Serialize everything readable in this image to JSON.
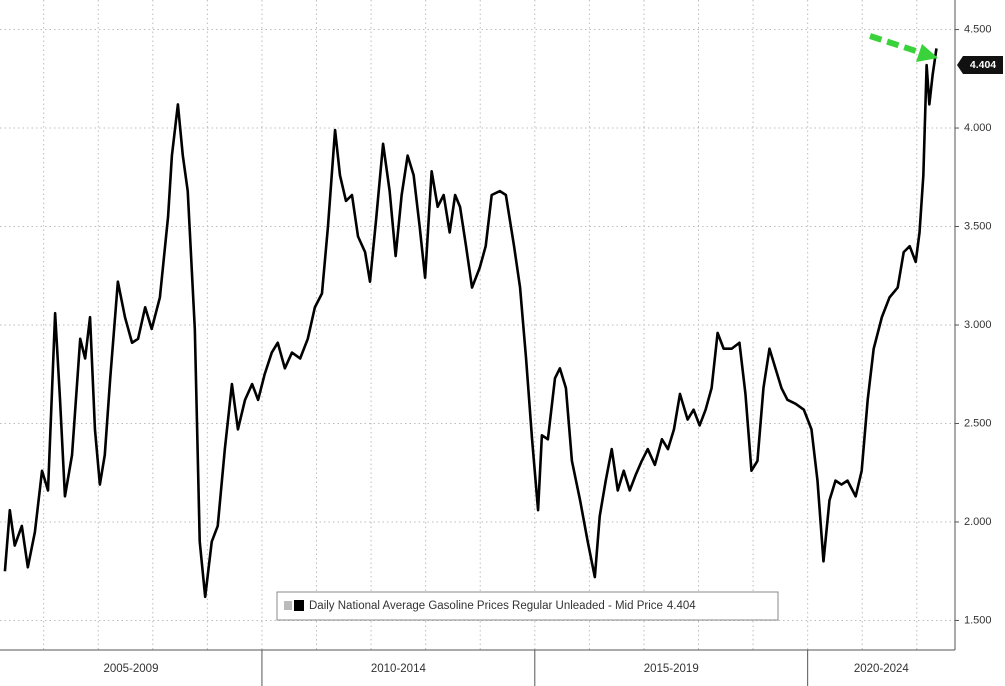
{
  "chart_data": {
    "type": "line",
    "series": [
      {
        "name": "Daily National Average Gasoline Prices Regular Unleaded - Mid Price",
        "color": "#000000",
        "values": [
          1.75,
          2.06,
          1.88,
          1.98,
          1.77,
          1.95,
          2.26,
          2.16,
          3.06,
          2.62,
          2.13,
          2.34,
          2.93,
          2.83,
          3.04,
          2.47,
          2.19,
          2.34,
          2.73,
          3.22,
          3.04,
          2.91,
          2.93,
          3.09,
          2.98,
          3.14,
          3.55,
          3.86,
          4.12,
          3.86,
          3.68,
          2.98,
          1.9,
          1.62,
          1.9,
          1.98,
          2.37,
          2.7,
          2.47,
          2.62,
          2.7,
          2.62,
          2.75,
          2.86,
          2.91,
          2.78,
          2.86,
          2.83,
          2.93,
          3.09,
          3.16,
          3.5,
          3.99,
          3.76,
          3.63,
          3.66,
          3.45,
          3.37,
          3.22,
          3.53,
          3.92,
          3.68,
          3.35,
          3.66,
          3.86,
          3.76,
          3.5,
          3.24,
          3.78,
          3.6,
          3.66,
          3.47,
          3.66,
          3.6,
          3.4,
          3.19,
          3.29,
          3.4,
          3.66,
          3.68,
          3.66,
          3.4,
          3.19,
          2.83,
          2.42,
          2.06,
          2.44,
          2.42,
          2.73,
          2.78,
          2.68,
          2.31,
          2.11,
          1.9,
          1.72,
          2.03,
          2.21,
          2.37,
          2.16,
          2.26,
          2.16,
          2.24,
          2.31,
          2.37,
          2.29,
          2.42,
          2.37,
          2.47,
          2.65,
          2.52,
          2.57,
          2.49,
          2.57,
          2.68,
          2.96,
          2.88,
          2.88,
          2.91,
          2.65,
          2.26,
          2.31,
          2.68,
          2.88,
          2.78,
          2.68,
          2.62,
          2.6,
          2.57,
          2.47,
          2.21,
          1.8,
          2.11,
          2.21,
          2.19,
          2.21,
          2.13,
          2.26,
          2.62,
          2.88,
          3.04,
          3.14,
          3.19,
          3.37,
          3.4,
          3.32,
          3.47,
          3.76,
          4.32,
          4.12,
          4.27,
          4.404
        ],
        "value_labels": {
          "147": "4.404"
        }
      }
    ],
    "x": [
      2005.29,
      2005.38,
      2005.47,
      2005.6,
      2005.71,
      2005.84,
      2005.97,
      2006.08,
      2006.21,
      2006.3,
      2006.39,
      2006.52,
      2006.67,
      2006.76,
      2006.85,
      2006.94,
      2007.03,
      2007.12,
      2007.22,
      2007.36,
      2007.49,
      2007.62,
      2007.73,
      2007.86,
      2007.98,
      2008.13,
      2008.28,
      2008.35,
      2008.46,
      2008.55,
      2008.64,
      2008.77,
      2008.86,
      2008.96,
      2009.08,
      2009.19,
      2009.32,
      2009.45,
      2009.56,
      2009.69,
      2009.82,
      2009.93,
      2010.05,
      2010.18,
      2010.29,
      2010.42,
      2010.55,
      2010.7,
      2010.84,
      2010.97,
      2011.1,
      2011.21,
      2011.34,
      2011.43,
      2011.54,
      2011.65,
      2011.76,
      2011.89,
      2011.98,
      2012.09,
      2012.22,
      2012.34,
      2012.45,
      2012.56,
      2012.67,
      2012.78,
      2012.89,
      2012.99,
      2013.11,
      2013.22,
      2013.33,
      2013.44,
      2013.54,
      2013.63,
      2013.74,
      2013.85,
      2013.99,
      2014.1,
      2014.21,
      2014.36,
      2014.47,
      2014.62,
      2014.73,
      2014.84,
      2014.95,
      2015.06,
      2015.13,
      2015.24,
      2015.37,
      2015.46,
      2015.57,
      2015.68,
      2015.83,
      2015.97,
      2016.1,
      2016.19,
      2016.3,
      2016.41,
      2016.52,
      2016.63,
      2016.74,
      2016.85,
      2016.96,
      2017.07,
      2017.2,
      2017.33,
      2017.44,
      2017.55,
      2017.66,
      2017.8,
      2017.91,
      2018.02,
      2018.13,
      2018.24,
      2018.35,
      2018.46,
      2018.61,
      2018.75,
      2018.86,
      2018.97,
      2019.08,
      2019.19,
      2019.3,
      2019.41,
      2019.52,
      2019.63,
      2019.78,
      2019.93,
      2020.07,
      2020.18,
      2020.29,
      2020.4,
      2020.51,
      2020.62,
      2020.73,
      2020.88,
      2020.99,
      2021.1,
      2021.21,
      2021.36,
      2021.5,
      2021.65,
      2021.76,
      2021.87,
      2021.98,
      2022.05,
      2022.12,
      2022.18,
      2022.23,
      2022.29,
      2022.36
    ],
    "xlim": [
      2005.2,
      2022.7
    ],
    "x_gridlines": [
      2006,
      2007,
      2008,
      2009,
      2010,
      2011,
      2012,
      2013,
      2014,
      2015,
      2016,
      2017,
      2018,
      2019,
      2020,
      2021,
      2022
    ],
    "periods": [
      {
        "label": "2005-2009",
        "start": 2005,
        "end": 2010
      },
      {
        "label": "2010-2014",
        "start": 2010,
        "end": 2015
      },
      {
        "label": "2015-2019",
        "start": 2015,
        "end": 2020
      },
      {
        "label": "2020-2024",
        "start": 2020,
        "end": 2025
      }
    ],
    "ylim": [
      1.35,
      4.65
    ],
    "yticks": [
      {
        "value": 1.5,
        "label": "1.500"
      },
      {
        "value": 2,
        "label": "2.000"
      },
      {
        "value": 2.5,
        "label": "2.500"
      },
      {
        "value": 3,
        "label": "3.000"
      },
      {
        "value": 3.5,
        "label": "3.500"
      },
      {
        "value": 4,
        "label": "4.000"
      },
      {
        "value": 4.5,
        "label": "4.500"
      }
    ],
    "grid": true
  }
}
